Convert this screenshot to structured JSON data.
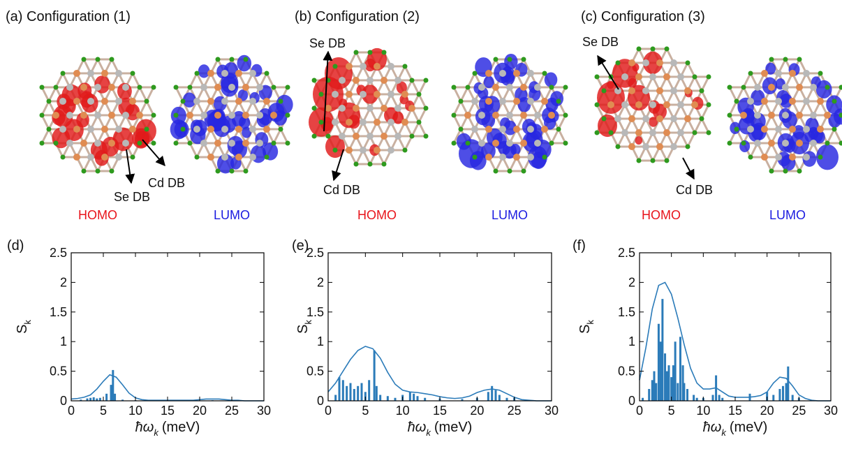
{
  "top_panels": [
    {
      "title": "(a) Configuration (1)",
      "homo": "HOMO",
      "lumo": "LUMO",
      "annotations": [
        "Cd DB",
        "Se DB"
      ]
    },
    {
      "title": "(b) Configuration (2)",
      "homo": "HOMO",
      "lumo": "LUMO",
      "annotations": [
        "Se DB",
        "Cd DB"
      ]
    },
    {
      "title": "(c) Configuration (3)",
      "homo": "HOMO",
      "lumo": "LUMO",
      "annotations": [
        "Se DB",
        "Cd DB"
      ]
    }
  ],
  "chart_data": [
    {
      "type": "spectrum",
      "panel_label": "(d)",
      "x_label": {
        "symbol": "ħω",
        "subscript": "k",
        "unit": "(meV)"
      },
      "y_label": {
        "symbol": "S",
        "subscript": "k"
      },
      "xlim": [
        0,
        30
      ],
      "ylim": [
        0,
        2.5
      ],
      "xticks": [
        0,
        5,
        10,
        15,
        20,
        25,
        30
      ],
      "yticks": [
        0,
        0.5,
        1,
        1.5,
        2,
        2.5
      ],
      "color": "#2b7bb9",
      "envelope": {
        "x": [
          0,
          1,
          2,
          3,
          4,
          5,
          6,
          7,
          8,
          9,
          10,
          11,
          12,
          13,
          14,
          15,
          16,
          17,
          18,
          19,
          20,
          21,
          22,
          23,
          24,
          25,
          26,
          27,
          28,
          29,
          30
        ],
        "values": [
          0.03,
          0.04,
          0.06,
          0.1,
          0.2,
          0.33,
          0.44,
          0.4,
          0.27,
          0.13,
          0.05,
          0.02,
          0.01,
          0.01,
          0.01,
          0.01,
          0.01,
          0.01,
          0.01,
          0.01,
          0.02,
          0.03,
          0.03,
          0.03,
          0.02,
          0.01,
          0.01,
          0.0,
          0.0,
          0.0,
          0.0
        ]
      },
      "sticks": {
        "x": [
          1.5,
          2.5,
          3,
          3.5,
          4,
          4.5,
          5.5,
          6.2,
          6.5,
          6.8,
          8,
          10,
          15,
          22
        ],
        "values": [
          0.02,
          0.04,
          0.05,
          0.06,
          0.04,
          0.05,
          0.12,
          0.27,
          0.52,
          0.12,
          0.02,
          0.01,
          0.01,
          0.01
        ]
      }
    },
    {
      "type": "spectrum",
      "panel_label": "(e)",
      "x_label": {
        "symbol": "ħω",
        "subscript": "k",
        "unit": "(meV)"
      },
      "y_label": {
        "symbol": "S",
        "subscript": "k"
      },
      "xlim": [
        0,
        30
      ],
      "ylim": [
        0,
        2.5
      ],
      "xticks": [
        0,
        5,
        10,
        15,
        20,
        25,
        30
      ],
      "yticks": [
        0,
        0.5,
        1,
        1.5,
        2,
        2.5
      ],
      "color": "#2b7bb9",
      "envelope": {
        "x": [
          0,
          1,
          2,
          3,
          4,
          5,
          6,
          7,
          8,
          9,
          10,
          11,
          12,
          13,
          14,
          15,
          16,
          17,
          18,
          19,
          20,
          21,
          22,
          23,
          24,
          25,
          26,
          27,
          28,
          29,
          30
        ],
        "values": [
          0.15,
          0.3,
          0.5,
          0.7,
          0.85,
          0.92,
          0.88,
          0.72,
          0.48,
          0.28,
          0.18,
          0.15,
          0.14,
          0.12,
          0.1,
          0.07,
          0.05,
          0.04,
          0.05,
          0.08,
          0.14,
          0.18,
          0.2,
          0.18,
          0.12,
          0.06,
          0.02,
          0.01,
          0.0,
          0.0,
          0.0
        ]
      },
      "sticks": {
        "x": [
          1,
          1.5,
          2,
          2.5,
          3,
          3.5,
          4,
          4.5,
          5,
          5.5,
          6.2,
          6.5,
          7,
          8,
          9,
          10,
          11,
          11.5,
          12,
          13,
          15,
          18,
          20,
          21.5,
          22,
          22.5,
          23,
          24,
          25
        ],
        "values": [
          0.1,
          0.4,
          0.35,
          0.25,
          0.3,
          0.2,
          0.25,
          0.3,
          0.15,
          0.35,
          0.85,
          0.25,
          0.1,
          0.08,
          0.05,
          0.1,
          0.15,
          0.12,
          0.08,
          0.05,
          0.04,
          0.03,
          0.05,
          0.15,
          0.25,
          0.18,
          0.1,
          0.05,
          0.05
        ]
      }
    },
    {
      "type": "spectrum",
      "panel_label": "(f)",
      "x_label": {
        "symbol": "ħω",
        "subscript": "k",
        "unit": "(meV)"
      },
      "y_label": {
        "symbol": "S",
        "subscript": "k"
      },
      "xlim": [
        0,
        30
      ],
      "ylim": [
        0,
        2.5
      ],
      "xticks": [
        0,
        5,
        10,
        15,
        20,
        25,
        30
      ],
      "yticks": [
        0,
        0.5,
        1,
        1.5,
        2,
        2.5
      ],
      "color": "#2b7bb9",
      "envelope": {
        "x": [
          0,
          1,
          2,
          3,
          4,
          5,
          6,
          7,
          8,
          9,
          10,
          11,
          12,
          13,
          14,
          15,
          16,
          17,
          18,
          19,
          20,
          21,
          22,
          23,
          24,
          25,
          26,
          27,
          28,
          29,
          30
        ],
        "values": [
          0.35,
          0.9,
          1.55,
          1.95,
          2.0,
          1.8,
          1.4,
          0.95,
          0.55,
          0.3,
          0.2,
          0.2,
          0.22,
          0.15,
          0.08,
          0.06,
          0.06,
          0.06,
          0.07,
          0.09,
          0.15,
          0.3,
          0.4,
          0.38,
          0.25,
          0.1,
          0.04,
          0.01,
          0.0,
          0.0,
          0.0
        ]
      },
      "sticks": {
        "x": [
          0.5,
          1.5,
          2,
          2.3,
          2.6,
          3,
          3.3,
          3.6,
          4,
          4.3,
          4.6,
          5,
          5.3,
          5.6,
          6,
          6.4,
          6.8,
          7,
          7.5,
          8.5,
          9,
          10,
          11.5,
          12,
          12.5,
          13,
          17.3,
          20,
          21,
          22,
          22.5,
          23,
          23.3,
          24,
          25
        ],
        "values": [
          0.05,
          0.2,
          0.35,
          0.5,
          0.3,
          1.3,
          1.0,
          1.72,
          0.8,
          0.5,
          0.6,
          0.4,
          0.6,
          1.0,
          0.3,
          1.08,
          0.6,
          0.3,
          0.2,
          0.1,
          0.05,
          0.05,
          0.1,
          0.43,
          0.1,
          0.05,
          0.12,
          0.15,
          0.1,
          0.2,
          0.25,
          0.3,
          0.58,
          0.1,
          0.05
        ]
      }
    }
  ]
}
